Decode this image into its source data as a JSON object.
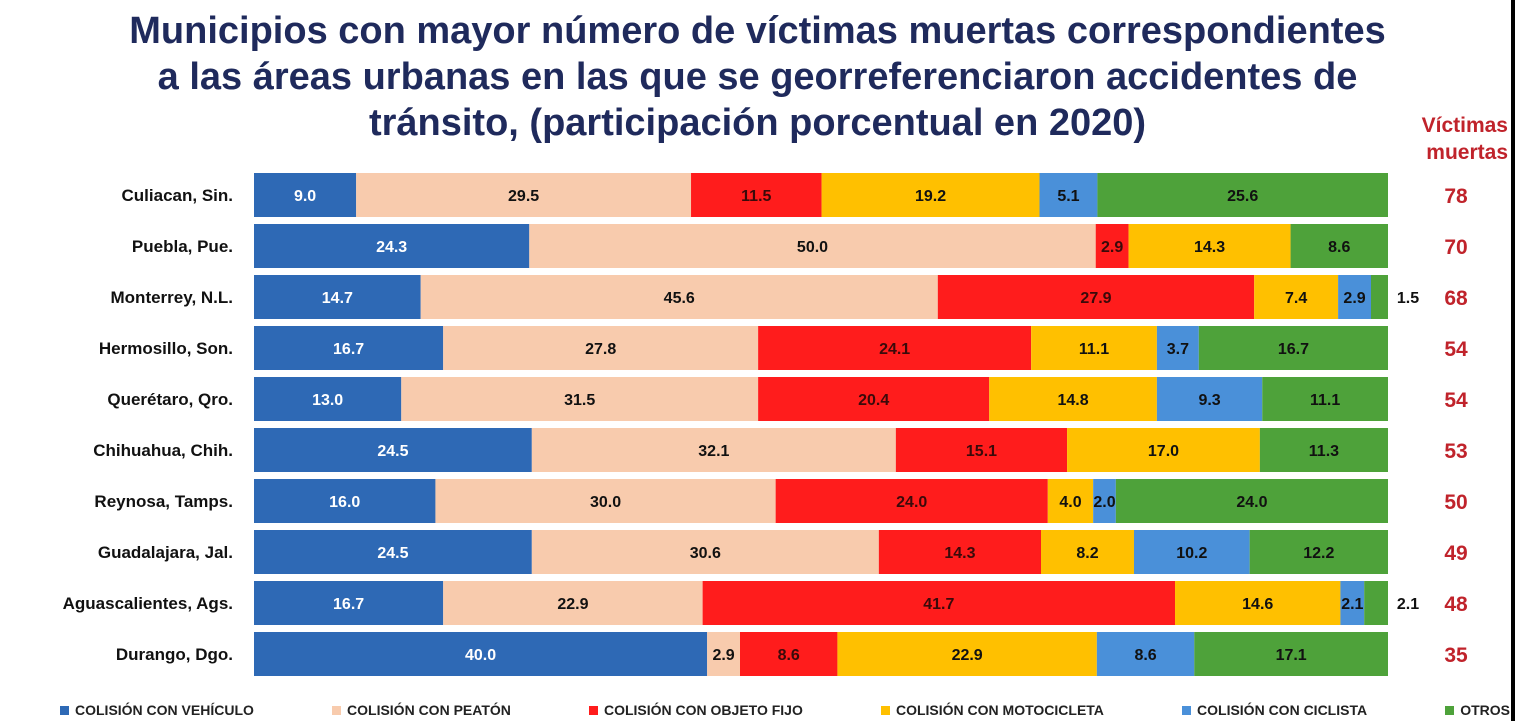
{
  "title": {
    "line1": "Municipios con mayor número de víctimas muertas correspondientes",
    "line2": "a las áreas urbanas en las que se georreferenciaron accidentes de",
    "line3": "tránsito, (participación porcentual en 2020)"
  },
  "victims_header": {
    "line1": "Víctimas",
    "line2": "muertas"
  },
  "chart_data": {
    "type": "bar",
    "orientation": "horizontal",
    "stacked": true,
    "normalized_percent": true,
    "xlim": [
      0,
      100
    ],
    "categories": [
      "Culiacan, Sin.",
      "Puebla, Pue.",
      "Monterrey, N.L.",
      "Hermosillo, Son.",
      "Querétaro, Qro.",
      "Chihuahua, Chih.",
      "Reynosa, Tamps.",
      "Guadalajara, Jal.",
      "Aguascalientes, Ags.",
      "Durango, Dgo."
    ],
    "series": [
      {
        "name": "COLISIÓN CON VEHÍCULO",
        "color": "#2e69b5",
        "label_color": "#ffffff",
        "values": [
          9.0,
          24.3,
          14.7,
          16.7,
          13.0,
          24.5,
          16.0,
          24.5,
          16.7,
          40.0
        ]
      },
      {
        "name": "COLISIÓN CON PEATÓN",
        "color": "#f8cbad",
        "label_color": "#111111",
        "values": [
          29.5,
          50.0,
          45.6,
          27.8,
          31.5,
          32.1,
          30.0,
          30.6,
          22.9,
          2.9
        ]
      },
      {
        "name": "COLISIÓN CON OBJETO FIJO",
        "color": "#ff1c1c",
        "label_color": "#3a0a0a",
        "values": [
          11.5,
          2.9,
          27.9,
          24.1,
          20.4,
          15.1,
          24.0,
          14.3,
          41.7,
          8.6
        ]
      },
      {
        "name": "COLISIÓN CON MOTOCICLETA",
        "color": "#ffc000",
        "label_color": "#111111",
        "values": [
          19.2,
          14.3,
          7.4,
          11.1,
          14.8,
          17.0,
          4.0,
          8.2,
          14.6,
          22.9
        ]
      },
      {
        "name": "COLISIÓN CON CICLISTA",
        "color": "#4a90d9",
        "label_color": "#111111",
        "values": [
          5.1,
          null,
          2.9,
          3.7,
          9.3,
          null,
          2.0,
          10.2,
          2.1,
          8.6
        ]
      },
      {
        "name": "OTROS",
        "color": "#4ea23a",
        "label_color": "#111111",
        "values": [
          25.6,
          8.6,
          1.5,
          16.7,
          11.1,
          11.3,
          24.0,
          12.2,
          2.1,
          17.1
        ]
      }
    ],
    "outside_labels": [
      {
        "category": "Monterrey, N.L.",
        "series": "OTROS",
        "text": "1.5"
      },
      {
        "category": "Aguascalientes, Ags.",
        "series": "OTROS",
        "text": "2.1"
      }
    ],
    "victims": [
      78,
      70,
      68,
      54,
      54,
      53,
      50,
      49,
      48,
      35
    ],
    "legend_position": "bottom"
  }
}
